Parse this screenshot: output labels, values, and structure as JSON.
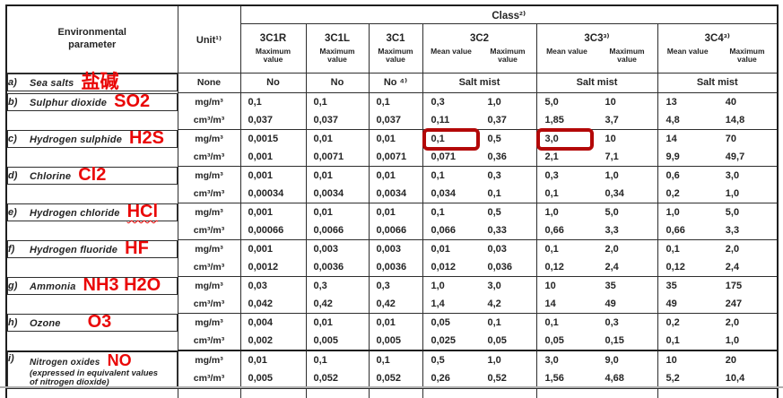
{
  "colors": {
    "annotation_red": "#ea0707",
    "highlight_box_red": "#b30808"
  },
  "table": {
    "header": {
      "param_label": "Environmental parameter",
      "unit_label": "Unit¹⁾",
      "class_label": "Class²⁾",
      "columns": [
        {
          "name": "3C1R",
          "type": "single",
          "sub": "Maximum value"
        },
        {
          "name": "3C1L",
          "type": "single",
          "sub": "Maximum value"
        },
        {
          "name": "3C1",
          "type": "single",
          "sub": "Maximum value"
        },
        {
          "name": "3C2",
          "type": "pair",
          "mean": "Mean value",
          "max": "Maximum value"
        },
        {
          "name": "3C3³⁾",
          "type": "pair",
          "mean": "Mean value",
          "max": "Maximum value"
        },
        {
          "name": "3C4³⁾",
          "type": "pair",
          "mean": "Mean value",
          "max": "Maximum value"
        }
      ]
    },
    "rows": [
      {
        "letter": "a)",
        "name": "Sea salts",
        "annotation": "盐碱",
        "anno_class": "big",
        "units": [
          "None"
        ],
        "lines": [
          {
            "values": [
              "No",
              "No",
              "No ⁴⁾"
            ],
            "pair_span": "Salt mist"
          }
        ]
      },
      {
        "letter": "b)",
        "name": "Sulphur dioxide",
        "annotation": "SO2",
        "units": [
          "mg/m³",
          "cm³/m³"
        ],
        "lines": [
          {
            "values": [
              "0,1",
              "0,1",
              "0,1",
              "0,3",
              "1,0",
              "5,0",
              "10",
              "13",
              "40"
            ]
          },
          {
            "values": [
              "0,037",
              "0,037",
              "0,037",
              "0,11",
              "0,37",
              "1,85",
              "3,7",
              "4,8",
              "14,8"
            ]
          }
        ]
      },
      {
        "letter": "c)",
        "name": "Hydrogen sulphide",
        "annotation": "H2S",
        "units": [
          "mg/m³",
          "cm³/m³"
        ],
        "lines": [
          {
            "values": [
              "0,0015",
              "0,01",
              "0,01",
              "0,1",
              "0,5",
              "3,0",
              "10",
              "14",
              "70"
            ],
            "boxed": [
              3,
              5
            ]
          },
          {
            "values": [
              "0,001",
              "0,0071",
              "0,0071",
              "0,071",
              "0,36",
              "2,1",
              "7,1",
              "9,9",
              "49,7"
            ]
          }
        ]
      },
      {
        "letter": "d)",
        "name": "Chlorine",
        "annotation": "Cl2",
        "units": [
          "mg/m³",
          "cm³/m³"
        ],
        "lines": [
          {
            "values": [
              "0,001",
              "0,01",
              "0,01",
              "0,1",
              "0,3",
              "0,3",
              "1,0",
              "0,6",
              "3,0"
            ]
          },
          {
            "values": [
              "0,00034",
              "0,0034",
              "0,0034",
              "0,034",
              "0,1",
              "0,1",
              "0,34",
              "0,2",
              "1,0"
            ]
          }
        ]
      },
      {
        "letter": "e)",
        "name": "Hydrogen chloride",
        "annotation": "HCl",
        "anno_class": "wavy",
        "units": [
          "mg/m³",
          "cm³/m³"
        ],
        "lines": [
          {
            "values": [
              "0,001",
              "0,01",
              "0,01",
              "0,1",
              "0,5",
              "1,0",
              "5,0",
              "1,0",
              "5,0"
            ]
          },
          {
            "values": [
              "0,00066",
              "0,0066",
              "0,0066",
              "0,066",
              "0,33",
              "0,66",
              "3,3",
              "0,66",
              "3,3"
            ]
          }
        ]
      },
      {
        "letter": "f)",
        "name": "Hydrogen fluoride",
        "annotation": "HF",
        "units": [
          "mg/m³",
          "cm³/m³"
        ],
        "lines": [
          {
            "values": [
              "0,001",
              "0,003",
              "0,003",
              "0,01",
              "0,03",
              "0,1",
              "2,0",
              "0,1",
              "2,0"
            ]
          },
          {
            "values": [
              "0,0012",
              "0,0036",
              "0,0036",
              "0,012",
              "0,036",
              "0,12",
              "2,4",
              "0,12",
              "2,4"
            ]
          }
        ]
      },
      {
        "letter": "g)",
        "name": "Ammonia",
        "annotation": "NH3 H2O",
        "units": [
          "mg/m³",
          "cm³/m³"
        ],
        "lines": [
          {
            "values": [
              "0,03",
              "0,3",
              "0,3",
              "1,0",
              "3,0",
              "10",
              "35",
              "35",
              "175"
            ]
          },
          {
            "values": [
              "0,042",
              "0,42",
              "0,42",
              "1,4",
              "4,2",
              "14",
              "49",
              "49",
              "247"
            ]
          }
        ]
      },
      {
        "letter": "h)",
        "name": "Ozone",
        "annotation": "O3",
        "anno_gap": true,
        "units": [
          "mg/m³",
          "cm³/m³"
        ],
        "lines": [
          {
            "values": [
              "0,004",
              "0,01",
              "0,01",
              "0,05",
              "0,1",
              "0,1",
              "0,3",
              "0,2",
              "2,0"
            ]
          },
          {
            "values": [
              "0,002",
              "0,005",
              "0,005",
              "0,025",
              "0,05",
              "0,05",
              "0,15",
              "0,1",
              "1,0"
            ]
          }
        ]
      },
      {
        "letter": "i)",
        "name": "Nitrogen oxides",
        "name_rest": "(expressed in equivalent values of nitrogen dioxide)",
        "annotation": "NO",
        "anno_class": "mid",
        "units": [
          "mg/m³",
          "cm³/m³"
        ],
        "lines": [
          {
            "values": [
              "0,01",
              "0,1",
              "0,1",
              "0,5",
              "1,0",
              "3,0",
              "9,0",
              "10",
              "20"
            ]
          },
          {
            "values": [
              "0,005",
              "0,052",
              "0,052",
              "0,26",
              "0,52",
              "1,56",
              "4,68",
              "5,2",
              "10,4"
            ]
          }
        ]
      }
    ]
  }
}
